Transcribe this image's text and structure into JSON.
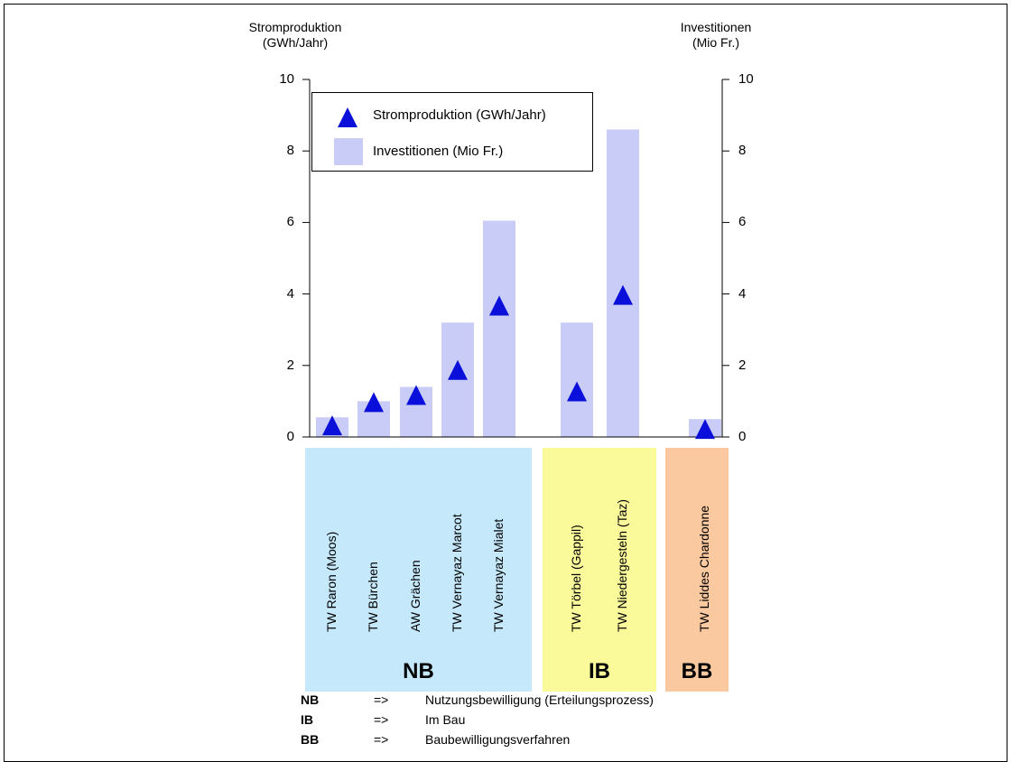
{
  "chart_data": {
    "type": "bar",
    "left_axis": {
      "title_line1": "Stromproduktion",
      "title_line2": "(GWh/Jahr)",
      "range": [
        0,
        10
      ],
      "ticks": [
        "0",
        "2",
        "4",
        "6",
        "8",
        "10"
      ]
    },
    "right_axis": {
      "title_line1": "Investitionen",
      "title_line2": "(Mio Fr.)",
      "range": [
        0,
        10
      ],
      "ticks": [
        "0",
        "2",
        "4",
        "6",
        "8",
        "10"
      ]
    },
    "categories": [
      "TW Raron (Moos)",
      "TW Bürchen",
      "AW Grächen",
      "TW Vernayaz Marcot",
      "TW Vernayaz Mialet",
      "TW Törbel (Gappil)",
      "TW Niedergesteln (Taz)",
      "TW Liddes Chardonne"
    ],
    "series": [
      {
        "name": "Stromproduktion (GWh/Jahr)",
        "kind": "triangle-marker",
        "color": "#0a10d9",
        "values": [
          0.3,
          0.95,
          1.15,
          1.85,
          3.65,
          1.25,
          3.95,
          0.2
        ]
      },
      {
        "name": "Investitionen (Mio Fr.)",
        "kind": "bar",
        "color": "#c9ccf6",
        "values": [
          0.55,
          1.0,
          1.4,
          3.2,
          6.05,
          3.2,
          8.6,
          0.5
        ]
      }
    ],
    "groups": [
      {
        "code": "NB",
        "color": "#c5e8fb",
        "members": [
          0,
          1,
          2,
          3,
          4
        ]
      },
      {
        "code": "IB",
        "color": "#fbfa9b",
        "members": [
          5,
          6
        ]
      },
      {
        "code": "BB",
        "color": "#fbc99f",
        "members": [
          7
        ]
      }
    ],
    "legend": {
      "placement": "top-left",
      "items": [
        "Stromproduktion (GWh/Jahr)",
        "Investitionen (Mio Fr.)"
      ]
    }
  },
  "footnotes": [
    {
      "code": "NB",
      "arrow": "=>",
      "text": "Nutzungsbewilligung (Erteilungsprozess)"
    },
    {
      "code": "IB",
      "arrow": "=>",
      "text": "Im Bau"
    },
    {
      "code": "BB",
      "arrow": "=>",
      "text": "Baubewilligungsverfahren"
    }
  ]
}
